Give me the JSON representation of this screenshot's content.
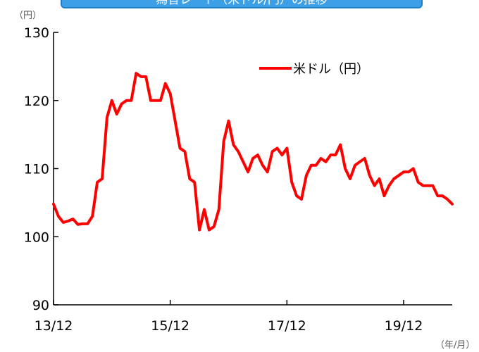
{
  "title": "為替レート（米ドル/円）の推移",
  "unit_y": "（円）",
  "unit_x": "（年/月）",
  "colors": {
    "series": "#ff0000",
    "title_bg": "#3da0e6"
  },
  "chart_data": {
    "type": "line",
    "title": "為替レート（米ドル/円）の推移",
    "xlabel": "（年/月）",
    "ylabel": "（円）",
    "ylim": [
      90,
      130
    ],
    "yticks": [
      90,
      100,
      110,
      120,
      130
    ],
    "xticks": [
      "13/12",
      "15/12",
      "17/12",
      "19/12"
    ],
    "grid": false,
    "legend": "top-right",
    "series": [
      {
        "name": "米ドル（円）",
        "color": "#ff0000",
        "x": [
          "2013-12",
          "2014-01",
          "2014-02",
          "2014-03",
          "2014-04",
          "2014-05",
          "2014-06",
          "2014-07",
          "2014-08",
          "2014-09",
          "2014-10",
          "2014-11",
          "2014-12",
          "2015-01",
          "2015-02",
          "2015-03",
          "2015-04",
          "2015-05",
          "2015-06",
          "2015-07",
          "2015-08",
          "2015-09",
          "2015-10",
          "2015-11",
          "2015-12",
          "2016-01",
          "2016-02",
          "2016-03",
          "2016-04",
          "2016-05",
          "2016-06",
          "2016-07",
          "2016-08",
          "2016-09",
          "2016-10",
          "2016-11",
          "2016-12",
          "2017-01",
          "2017-02",
          "2017-03",
          "2017-04",
          "2017-05",
          "2017-06",
          "2017-07",
          "2017-08",
          "2017-09",
          "2017-10",
          "2017-11",
          "2017-12",
          "2018-01",
          "2018-02",
          "2018-03",
          "2018-04",
          "2018-05",
          "2018-06",
          "2018-07",
          "2018-08",
          "2018-09",
          "2018-10",
          "2018-11",
          "2018-12",
          "2019-01",
          "2019-02",
          "2019-03",
          "2019-04",
          "2019-05",
          "2019-06",
          "2019-07",
          "2019-08",
          "2019-09",
          "2019-10",
          "2019-11",
          "2019-12",
          "2020-01",
          "2020-02",
          "2020-03",
          "2020-04",
          "2020-05",
          "2020-06",
          "2020-07",
          "2020-08",
          "2020-09",
          "2020-10"
        ],
        "values": [
          104.8,
          103.0,
          102.1,
          102.3,
          102.6,
          101.8,
          101.9,
          101.9,
          103.0,
          108.0,
          108.5,
          117.5,
          120.0,
          118.0,
          119.5,
          120.0,
          120.0,
          124.0,
          123.5,
          123.5,
          120.0,
          120.0,
          120.0,
          122.5,
          121.0,
          117.0,
          113.0,
          112.5,
          108.5,
          108.0,
          101.0,
          104.0,
          101.0,
          101.5,
          104.0,
          114.0,
          117.0,
          113.5,
          112.5,
          111.0,
          109.5,
          111.5,
          112.0,
          110.5,
          109.5,
          112.5,
          113.0,
          112.0,
          113.0,
          108.0,
          106.0,
          105.5,
          109.0,
          110.5,
          110.5,
          111.5,
          111.0,
          112.0,
          112.0,
          113.5,
          110.0,
          108.5,
          110.5,
          111.0,
          111.5,
          109.0,
          107.5,
          108.5,
          106.0,
          107.5,
          108.5,
          109.0,
          109.5,
          109.5,
          110.0,
          108.0,
          107.5,
          107.5,
          107.5,
          106.0,
          106.0,
          105.5,
          104.8
        ]
      }
    ]
  }
}
